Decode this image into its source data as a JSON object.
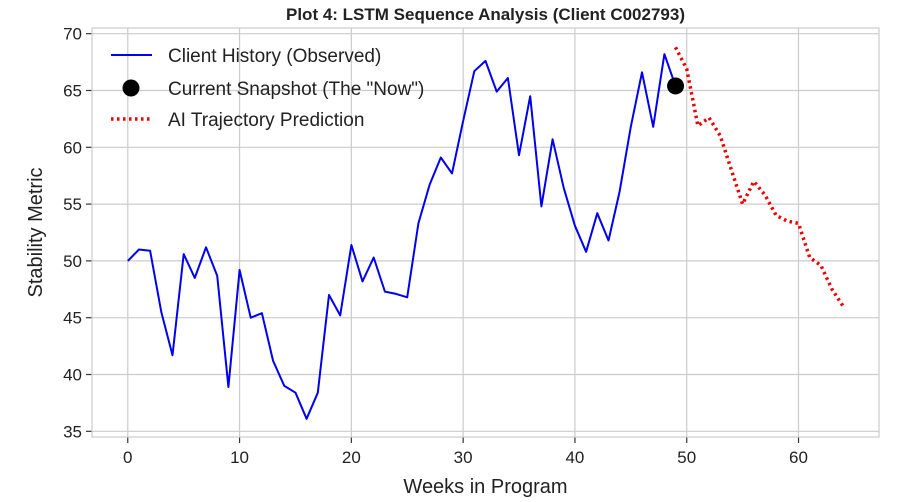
{
  "chart_data": {
    "type": "line",
    "title": "Plot 4: LSTM Sequence Analysis (Client C002793)",
    "xlabel": "Weeks in Program",
    "ylabel": "Stability Metric",
    "xlim": [
      -3.2,
      67.2
    ],
    "ylim": [
      34.5,
      70.5
    ],
    "xticks": [
      0,
      10,
      20,
      30,
      40,
      50,
      60
    ],
    "yticks": [
      35,
      40,
      45,
      50,
      55,
      60,
      65,
      70
    ],
    "grid": true,
    "legend_position": "top-left",
    "series": [
      {
        "name": "Client History (Observed)",
        "style": "solid",
        "color": "#0000ee",
        "x": [
          0,
          1,
          2,
          3,
          4,
          5,
          6,
          7,
          8,
          9,
          10,
          11,
          12,
          13,
          14,
          15,
          16,
          17,
          18,
          19,
          20,
          21,
          22,
          23,
          24,
          25,
          26,
          27,
          28,
          29,
          30,
          31,
          32,
          33,
          34,
          35,
          36,
          37,
          38,
          39,
          40,
          41,
          42,
          43,
          44,
          45,
          46,
          47,
          48,
          49
        ],
        "y": [
          50.0,
          51.0,
          50.9,
          45.5,
          41.7,
          50.6,
          48.5,
          51.2,
          48.7,
          38.9,
          49.2,
          45.0,
          45.4,
          41.2,
          39.0,
          38.4,
          36.1,
          38.4,
          47.0,
          45.2,
          51.4,
          48.2,
          50.3,
          47.3,
          47.1,
          46.8,
          53.3,
          56.7,
          59.1,
          57.7,
          62.3,
          66.7,
          67.6,
          64.9,
          66.1,
          59.3,
          64.5,
          54.8,
          60.7,
          56.4,
          53.1,
          50.8,
          54.2,
          51.8,
          56.1,
          61.8,
          66.6,
          61.8,
          68.2,
          65.4
        ]
      },
      {
        "name": "Current Snapshot (The \"Now\")",
        "style": "point",
        "color": "#000000",
        "x": [
          49
        ],
        "y": [
          65.4
        ]
      },
      {
        "name": "AI Trajectory Prediction",
        "style": "dotted",
        "color": "#ee0000",
        "x": [
          49,
          50,
          51,
          52,
          53,
          54,
          55,
          56,
          57,
          58,
          59,
          60,
          61,
          62,
          63,
          64
        ],
        "y": [
          68.8,
          66.9,
          61.9,
          62.6,
          61.0,
          58.0,
          55.0,
          57.0,
          55.8,
          54.0,
          53.5,
          53.3,
          50.3,
          49.6,
          47.5,
          46.0
        ]
      }
    ]
  }
}
